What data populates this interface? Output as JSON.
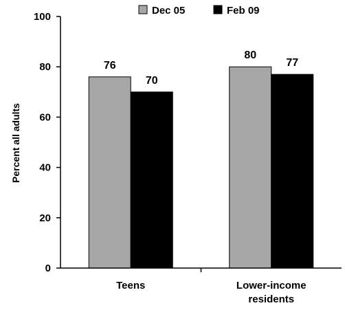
{
  "chart_data": {
    "type": "bar",
    "ylabel": "Percent all adults",
    "xlabel": "",
    "ylim": [
      0,
      100
    ],
    "yticks": [
      0,
      20,
      40,
      60,
      80,
      100
    ],
    "categories": [
      [
        "Teens"
      ],
      [
        "Lower-income",
        "residents"
      ]
    ],
    "series": [
      {
        "name": "Dec 05",
        "color": "#a6a6a6",
        "values": [
          76,
          80
        ]
      },
      {
        "name": "Feb 09",
        "color": "#000000",
        "values": [
          70,
          77
        ]
      }
    ],
    "legend_position": "top"
  }
}
